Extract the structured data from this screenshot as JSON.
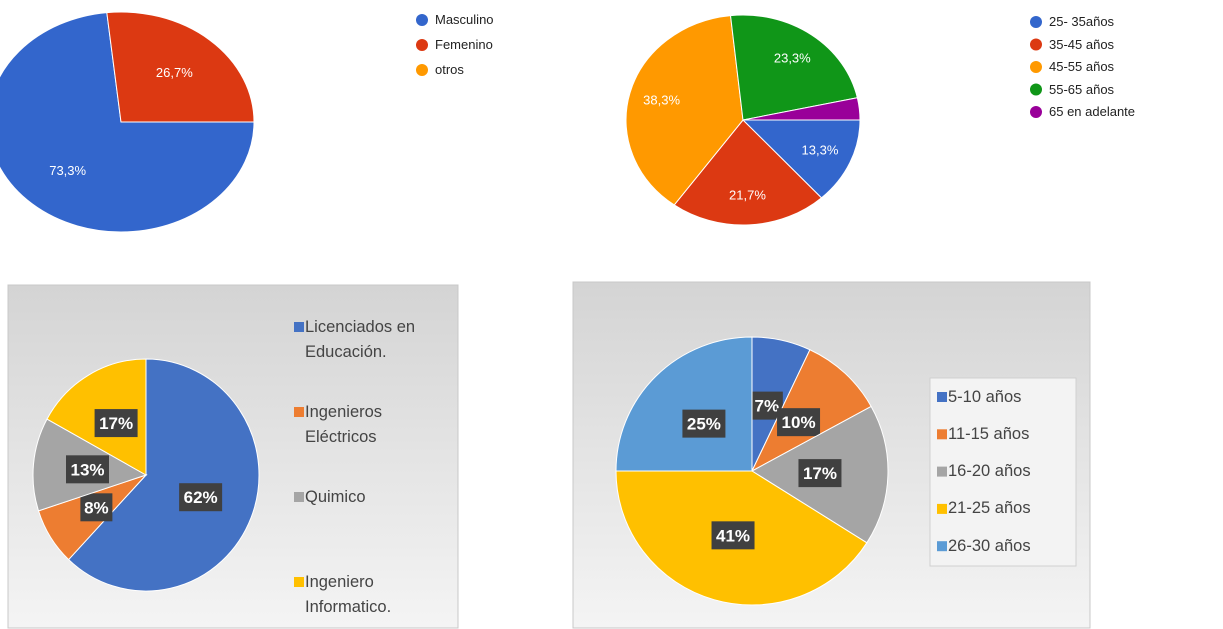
{
  "chart_data": [
    {
      "type": "pie",
      "categories": [
        "Masculino",
        "Femenino",
        "otros"
      ],
      "values": [
        73.3,
        26.7,
        0
      ],
      "value_labels": [
        "73,3%",
        "26,7%",
        null
      ],
      "colors": [
        "#3366cc",
        "#dc3912",
        "#ff9900"
      ]
    },
    {
      "type": "pie",
      "categories": [
        "25- 35años",
        "35-45 años",
        "45-55 años",
        "55-65 años",
        "65 en adelante"
      ],
      "values": [
        13.3,
        21.7,
        38.3,
        23.3,
        3.4
      ],
      "value_labels": [
        "13,3%",
        "21,7%",
        "38,3%",
        "23,3%",
        null
      ],
      "colors": [
        "#3366cc",
        "#dc3912",
        "#ff9900",
        "#109618",
        "#990099"
      ]
    },
    {
      "type": "pie",
      "categories": [
        "Licenciados en Educación.",
        "Ingenieros Eléctricos",
        "Quimico",
        "Ingeniero Informatico."
      ],
      "values": [
        62,
        8,
        13,
        17
      ],
      "value_labels": [
        "62%",
        "8%",
        "13%",
        "17%"
      ],
      "colors": [
        "#4472c4",
        "#ed7d31",
        "#a5a5a5",
        "#ffc000"
      ]
    },
    {
      "type": "pie",
      "categories": [
        "5-10 años",
        "11-15 años",
        "16-20 años",
        "21-25 años",
        "26-30 años"
      ],
      "values": [
        7,
        10,
        17,
        41,
        25
      ],
      "value_labels": [
        "7%",
        "10%",
        "17%",
        "41%",
        "25%"
      ],
      "colors": [
        "#4472c4",
        "#ed7d31",
        "#a5a5a5",
        "#ffc000",
        "#5b9bd5"
      ]
    }
  ]
}
